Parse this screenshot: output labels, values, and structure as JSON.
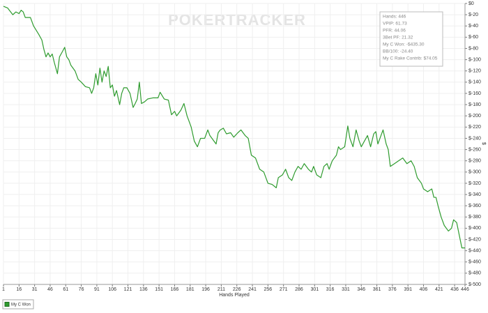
{
  "chart_data": {
    "type": "line",
    "watermark": "POKERTRACKER",
    "xlabel": "Hands Played",
    "ylabel": "$",
    "xlim": [
      1,
      446
    ],
    "xticks": [
      1,
      16,
      31,
      46,
      61,
      76,
      91,
      106,
      121,
      136,
      151,
      166,
      181,
      196,
      211,
      226,
      241,
      256,
      271,
      286,
      301,
      316,
      331,
      346,
      361,
      376,
      391,
      406,
      421,
      436,
      446
    ],
    "ylim": [
      -500,
      0
    ],
    "yticks": [
      {
        "value": 0,
        "label": "$0"
      },
      {
        "value": -20,
        "label": "$-20"
      },
      {
        "value": -40,
        "label": "$-40"
      },
      {
        "value": -60,
        "label": "$-60"
      },
      {
        "value": -80,
        "label": "$-80"
      },
      {
        "value": -100,
        "label": "$-100"
      },
      {
        "value": -120,
        "label": "$-120"
      },
      {
        "value": -140,
        "label": "$-140"
      },
      {
        "value": -160,
        "label": "$-160"
      },
      {
        "value": -180,
        "label": "$-180"
      },
      {
        "value": -200,
        "label": "$-200"
      },
      {
        "value": -220,
        "label": "$-220"
      },
      {
        "value": -240,
        "label": "$-240"
      },
      {
        "value": -260,
        "label": "$-260"
      },
      {
        "value": -280,
        "label": "$-280"
      },
      {
        "value": -300,
        "label": "$-300"
      },
      {
        "value": -320,
        "label": "$-320"
      },
      {
        "value": -340,
        "label": "$-340"
      },
      {
        "value": -360,
        "label": "$-360"
      },
      {
        "value": -380,
        "label": "$-380"
      },
      {
        "value": -400,
        "label": "$-400"
      },
      {
        "value": -420,
        "label": "$-420"
      },
      {
        "value": -440,
        "label": "$-440"
      },
      {
        "value": -460,
        "label": "$-460"
      },
      {
        "value": -480,
        "label": "$-480"
      },
      {
        "value": -500,
        "label": "$-500"
      }
    ],
    "grid": true,
    "stats": [
      "Hands: 446",
      "VPIP: 61.73",
      "PFR: 44.06",
      "3Bet PF: 21.32",
      "My C Won: -$435.30",
      "BB/100: -24.40",
      "My C Rake Contrib: $74.05"
    ],
    "x": [
      1,
      5,
      10,
      13,
      16,
      18,
      20,
      22,
      27,
      30,
      35,
      38,
      40,
      42,
      44,
      46,
      48,
      50,
      53,
      55,
      58,
      60,
      62,
      64,
      66,
      70,
      73,
      76,
      80,
      84,
      86,
      88,
      90,
      92,
      94,
      96,
      98,
      100,
      102,
      104,
      106,
      108,
      110,
      113,
      115,
      117,
      120,
      123,
      126,
      128,
      130,
      132,
      134,
      137,
      140,
      145,
      150,
      152,
      156,
      160,
      163,
      166,
      168,
      172,
      175,
      178,
      182,
      185,
      188,
      191,
      195,
      198,
      200,
      204,
      206,
      208,
      210,
      213,
      216,
      220,
      223,
      227,
      230,
      234,
      237,
      240,
      244,
      248,
      252,
      256,
      260,
      264,
      266,
      270,
      273,
      276,
      279,
      282,
      285,
      288,
      291,
      295,
      298,
      300,
      303,
      307,
      310,
      313,
      315,
      318,
      322,
      324,
      326,
      330,
      333,
      335,
      338,
      341,
      344,
      346,
      349,
      352,
      355,
      358,
      360,
      362,
      364,
      367,
      370,
      372,
      374,
      378,
      382,
      386,
      390,
      394,
      397,
      400,
      404,
      406,
      410,
      414,
      416,
      418,
      420,
      423,
      426,
      430,
      433,
      435,
      438,
      440,
      443,
      446
    ],
    "series": [
      {
        "name": "My C Won",
        "color": "#2e9b2e",
        "values": [
          -5,
          -8,
          -20,
          -15,
          -18,
          -12,
          -15,
          -25,
          -25,
          -40,
          -55,
          -65,
          -82,
          -95,
          -88,
          -95,
          -90,
          -105,
          -125,
          -95,
          -85,
          -78,
          -95,
          -100,
          -110,
          -120,
          -135,
          -140,
          -148,
          -150,
          -160,
          -150,
          -125,
          -145,
          -115,
          -140,
          -120,
          -130,
          -112,
          -150,
          -145,
          -165,
          -155,
          -180,
          -160,
          -150,
          -150,
          -160,
          -185,
          -178,
          -170,
          -140,
          -178,
          -175,
          -170,
          -168,
          -168,
          -158,
          -170,
          -172,
          -198,
          -192,
          -200,
          -190,
          -178,
          -200,
          -220,
          -245,
          -255,
          -240,
          -240,
          -225,
          -235,
          -245,
          -250,
          -230,
          -225,
          -222,
          -232,
          -230,
          -238,
          -230,
          -225,
          -235,
          -240,
          -270,
          -275,
          -295,
          -300,
          -320,
          -322,
          -328,
          -310,
          -305,
          -295,
          -310,
          -315,
          -300,
          -290,
          -295,
          -285,
          -295,
          -300,
          -290,
          -305,
          -310,
          -290,
          -285,
          -295,
          -280,
          -270,
          -255,
          -260,
          -255,
          -218,
          -240,
          -255,
          -225,
          -245,
          -255,
          -245,
          -235,
          -255,
          -232,
          -228,
          -250,
          -240,
          -225,
          -250,
          -260,
          -290,
          -285,
          -280,
          -275,
          -285,
          -280,
          -290,
          -310,
          -320,
          -330,
          -335,
          -330,
          -345,
          -345,
          -360,
          -380,
          -395,
          -405,
          -400,
          -385,
          -390,
          -408,
          -435,
          -435
        ]
      }
    ]
  }
}
